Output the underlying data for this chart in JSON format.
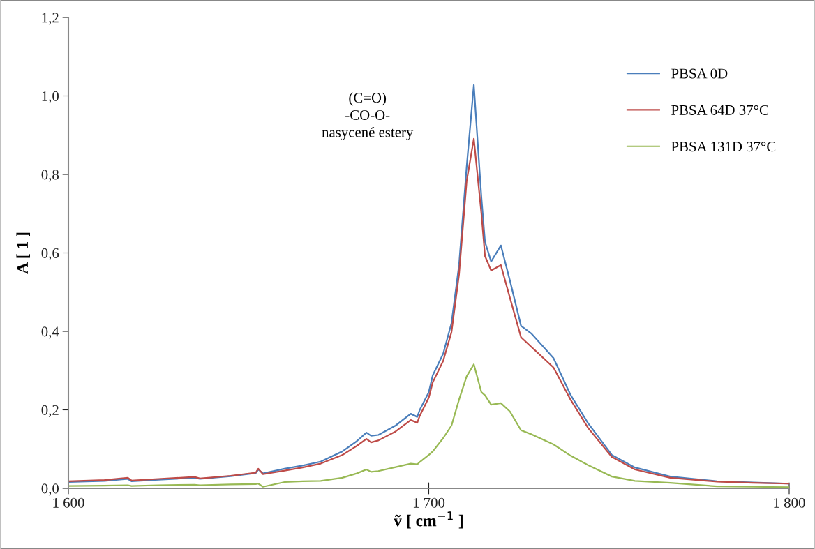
{
  "chart_data": {
    "type": "line",
    "xlabel": "ṽ [ cm$^{−1}$ ]",
    "ylabel": "A [ 1 ]",
    "x": [
      1600,
      1610,
      1616.5,
      1617.5,
      1625,
      1635,
      1636.5,
      1645,
      1652,
      1652.7,
      1654,
      1660,
      1665,
      1670,
      1676,
      1680,
      1682.7,
      1684,
      1686,
      1690.8,
      1695,
      1696.8,
      1697.5,
      1700,
      1701.1,
      1704,
      1706.3,
      1708.4,
      1710.5,
      1712.5,
      1714.6,
      1715.6,
      1717.3,
      1720,
      1722.5,
      1725.6,
      1728.4,
      1734.6,
      1739.4,
      1744.2,
      1750.8,
      1757.2,
      1767,
      1780,
      1790,
      1800
    ],
    "series": [
      {
        "name": "PBSA 0D",
        "color": "#4a7ebb",
        "values": [
          0.016,
          0.019,
          0.024,
          0.018,
          0.022,
          0.027,
          0.024,
          0.031,
          0.039,
          0.048,
          0.038,
          0.05,
          0.058,
          0.068,
          0.094,
          0.12,
          0.142,
          0.134,
          0.136,
          0.16,
          0.19,
          0.182,
          0.2,
          0.245,
          0.288,
          0.343,
          0.421,
          0.569,
          0.818,
          1.028,
          0.741,
          0.628,
          0.578,
          0.619,
          0.53,
          0.414,
          0.395,
          0.332,
          0.237,
          0.166,
          0.085,
          0.053,
          0.03,
          0.018,
          0.015,
          0.012
        ]
      },
      {
        "name": "PBSA 64D 37°C",
        "color": "#be4b48",
        "values": [
          0.018,
          0.021,
          0.027,
          0.02,
          0.024,
          0.029,
          0.025,
          0.032,
          0.04,
          0.05,
          0.036,
          0.045,
          0.053,
          0.063,
          0.085,
          0.108,
          0.126,
          0.117,
          0.122,
          0.145,
          0.174,
          0.167,
          0.185,
          0.231,
          0.27,
          0.325,
          0.398,
          0.545,
          0.782,
          0.891,
          0.7,
          0.592,
          0.555,
          0.569,
          0.486,
          0.385,
          0.361,
          0.308,
          0.225,
          0.154,
          0.08,
          0.048,
          0.027,
          0.017,
          0.014,
          0.012
        ]
      },
      {
        "name": "PBSA 131D 37°C",
        "color": "#98b954",
        "values": [
          0.006,
          0.007,
          0.008,
          0.006,
          0.008,
          0.009,
          0.008,
          0.01,
          0.011,
          0.012,
          0.004,
          0.016,
          0.018,
          0.019,
          0.027,
          0.038,
          0.048,
          0.042,
          0.044,
          0.054,
          0.063,
          0.061,
          0.067,
          0.085,
          0.094,
          0.128,
          0.16,
          0.226,
          0.285,
          0.316,
          0.245,
          0.237,
          0.213,
          0.217,
          0.196,
          0.148,
          0.138,
          0.112,
          0.083,
          0.059,
          0.03,
          0.019,
          0.014,
          0.005,
          0.004,
          0.003
        ]
      }
    ],
    "xlim": [
      1600,
      1800
    ],
    "xticks": [
      {
        "value": 1600,
        "label": "1 600"
      },
      {
        "value": 1700,
        "label": "1 700"
      },
      {
        "value": 1800,
        "label": "1 800"
      }
    ],
    "ylim": [
      0,
      1.2
    ],
    "yticks": [
      {
        "value": 0,
        "label": "0,0"
      },
      {
        "value": 0.2,
        "label": "0,2"
      },
      {
        "value": 0.4,
        "label": "0,4"
      },
      {
        "value": 0.6,
        "label": "0,6"
      },
      {
        "value": 0.8,
        "label": "0,8"
      },
      {
        "value": 1.0,
        "label": "1,0"
      },
      {
        "value": 1.2,
        "label": "1,2"
      }
    ],
    "annotations": [
      "(C=O)\n-CO-O-\nnasycené estery"
    ],
    "grid": false,
    "legend": "top right",
    "marker": "none",
    "line_style": "solid"
  }
}
